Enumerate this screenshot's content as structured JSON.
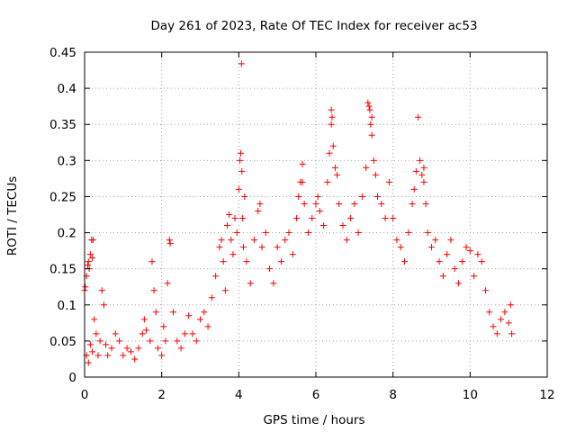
{
  "chart_data": {
    "type": "scatter",
    "title": "Day 261 of 2023, Rate Of TEC Index for receiver ac53",
    "xlabel": "GPS time / hours",
    "ylabel": "ROTI / TECUs",
    "xlim": [
      0,
      12
    ],
    "ylim": [
      0,
      0.45
    ],
    "xticks": [
      0,
      2,
      4,
      6,
      8,
      10,
      12
    ],
    "yticks": [
      0,
      0.05,
      0.1,
      0.15,
      0.2,
      0.25,
      0.3,
      0.35,
      0.4,
      0.45
    ],
    "xtick_labels": [
      "0",
      "2",
      "4",
      "6",
      "8",
      "10",
      "12"
    ],
    "ytick_labels": [
      "0",
      "0.05",
      "0.1",
      "0.15",
      "0.2",
      "0.25",
      "0.3",
      "0.35",
      "0.4",
      "0.45"
    ],
    "grid": true,
    "marker": "plus",
    "color": "#ff0000",
    "series": [
      {
        "points": [
          [
            0.0,
            0.12
          ],
          [
            0.02,
            0.125
          ],
          [
            0.05,
            0.14
          ],
          [
            0.08,
            0.155
          ],
          [
            0.1,
            0.16
          ],
          [
            0.12,
            0.15
          ],
          [
            0.15,
            0.17
          ],
          [
            0.18,
            0.19
          ],
          [
            0.2,
            0.165
          ],
          [
            0.22,
            0.19
          ],
          [
            0.05,
            0.03
          ],
          [
            0.1,
            0.02
          ],
          [
            0.15,
            0.045
          ],
          [
            0.2,
            0.035
          ],
          [
            0.25,
            0.08
          ],
          [
            0.3,
            0.06
          ],
          [
            0.35,
            0.03
          ],
          [
            0.4,
            0.05
          ],
          [
            0.45,
            0.12
          ],
          [
            0.5,
            0.1
          ],
          [
            0.55,
            0.045
          ],
          [
            0.6,
            0.03
          ],
          [
            0.7,
            0.04
          ],
          [
            0.8,
            0.06
          ],
          [
            0.9,
            0.05
          ],
          [
            1.0,
            0.03
          ],
          [
            1.1,
            0.04
          ],
          [
            1.2,
            0.035
          ],
          [
            1.3,
            0.025
          ],
          [
            1.4,
            0.04
          ],
          [
            1.5,
            0.06
          ],
          [
            1.55,
            0.08
          ],
          [
            1.6,
            0.065
          ],
          [
            1.7,
            0.05
          ],
          [
            1.75,
            0.16
          ],
          [
            1.8,
            0.12
          ],
          [
            1.85,
            0.09
          ],
          [
            1.9,
            0.04
          ],
          [
            2.0,
            0.03
          ],
          [
            2.05,
            0.07
          ],
          [
            2.1,
            0.05
          ],
          [
            2.15,
            0.13
          ],
          [
            2.2,
            0.19
          ],
          [
            2.22,
            0.185
          ],
          [
            2.3,
            0.09
          ],
          [
            2.4,
            0.05
          ],
          [
            2.5,
            0.04
          ],
          [
            2.6,
            0.06
          ],
          [
            2.7,
            0.085
          ],
          [
            2.8,
            0.06
          ],
          [
            2.9,
            0.05
          ],
          [
            3.0,
            0.08
          ],
          [
            3.1,
            0.09
          ],
          [
            3.2,
            0.07
          ],
          [
            3.3,
            0.11
          ],
          [
            3.4,
            0.14
          ],
          [
            3.5,
            0.18
          ],
          [
            3.55,
            0.19
          ],
          [
            3.6,
            0.16
          ],
          [
            3.65,
            0.12
          ],
          [
            3.7,
            0.21
          ],
          [
            3.75,
            0.225
          ],
          [
            3.8,
            0.19
          ],
          [
            3.85,
            0.17
          ],
          [
            3.9,
            0.22
          ],
          [
            3.95,
            0.2
          ],
          [
            4.0,
            0.26
          ],
          [
            4.03,
            0.3
          ],
          [
            4.05,
            0.31
          ],
          [
            4.08,
            0.285
          ],
          [
            4.1,
            0.22
          ],
          [
            4.12,
            0.18
          ],
          [
            4.15,
            0.25
          ],
          [
            4.2,
            0.16
          ],
          [
            4.3,
            0.13
          ],
          [
            4.4,
            0.19
          ],
          [
            4.5,
            0.23
          ],
          [
            4.55,
            0.24
          ],
          [
            4.6,
            0.18
          ],
          [
            4.7,
            0.2
          ],
          [
            4.8,
            0.15
          ],
          [
            4.9,
            0.13
          ],
          [
            5.0,
            0.18
          ],
          [
            5.1,
            0.16
          ],
          [
            5.2,
            0.19
          ],
          [
            5.3,
            0.2
          ],
          [
            5.4,
            0.17
          ],
          [
            5.5,
            0.22
          ],
          [
            5.55,
            0.25
          ],
          [
            5.6,
            0.27
          ],
          [
            5.65,
            0.295
          ],
          [
            5.7,
            0.24
          ],
          [
            5.8,
            0.2
          ],
          [
            5.9,
            0.22
          ],
          [
            6.0,
            0.24
          ],
          [
            6.05,
            0.25
          ],
          [
            6.1,
            0.23
          ],
          [
            6.2,
            0.21
          ],
          [
            6.3,
            0.27
          ],
          [
            6.35,
            0.31
          ],
          [
            6.4,
            0.37
          ],
          [
            6.42,
            0.36
          ],
          [
            6.45,
            0.32
          ],
          [
            6.5,
            0.29
          ],
          [
            6.55,
            0.28
          ],
          [
            6.6,
            0.24
          ],
          [
            6.7,
            0.21
          ],
          [
            6.8,
            0.19
          ],
          [
            6.9,
            0.22
          ],
          [
            7.0,
            0.24
          ],
          [
            7.1,
            0.2
          ],
          [
            7.2,
            0.25
          ],
          [
            7.3,
            0.29
          ],
          [
            7.35,
            0.38
          ],
          [
            7.38,
            0.375
          ],
          [
            7.4,
            0.37
          ],
          [
            7.42,
            0.35
          ],
          [
            7.45,
            0.335
          ],
          [
            7.5,
            0.3
          ],
          [
            7.55,
            0.28
          ],
          [
            7.6,
            0.25
          ],
          [
            7.7,
            0.24
          ],
          [
            7.8,
            0.22
          ],
          [
            7.9,
            0.27
          ],
          [
            8.0,
            0.22
          ],
          [
            8.1,
            0.19
          ],
          [
            8.2,
            0.18
          ],
          [
            8.3,
            0.16
          ],
          [
            8.4,
            0.2
          ],
          [
            8.5,
            0.24
          ],
          [
            8.55,
            0.26
          ],
          [
            8.6,
            0.285
          ],
          [
            8.65,
            0.36
          ],
          [
            8.7,
            0.3
          ],
          [
            8.75,
            0.28
          ],
          [
            8.8,
            0.27
          ],
          [
            8.85,
            0.24
          ],
          [
            8.9,
            0.2
          ],
          [
            9.0,
            0.18
          ],
          [
            9.1,
            0.19
          ],
          [
            9.2,
            0.16
          ],
          [
            9.3,
            0.14
          ],
          [
            9.4,
            0.17
          ],
          [
            9.5,
            0.19
          ],
          [
            9.6,
            0.15
          ],
          [
            9.7,
            0.13
          ],
          [
            9.8,
            0.16
          ],
          [
            9.9,
            0.18
          ],
          [
            10.0,
            0.175
          ],
          [
            10.1,
            0.14
          ],
          [
            10.2,
            0.17
          ],
          [
            10.3,
            0.16
          ],
          [
            10.4,
            0.12
          ],
          [
            10.5,
            0.09
          ],
          [
            10.6,
            0.07
          ],
          [
            10.7,
            0.06
          ],
          [
            10.8,
            0.08
          ],
          [
            10.9,
            0.09
          ],
          [
            11.0,
            0.075
          ],
          [
            11.05,
            0.1
          ],
          [
            11.08,
            0.06
          ],
          [
            4.07,
            0.434
          ],
          [
            6.4,
            0.35
          ],
          [
            7.45,
            0.36
          ],
          [
            5.65,
            0.27
          ],
          [
            8.8,
            0.29
          ]
        ]
      }
    ]
  }
}
